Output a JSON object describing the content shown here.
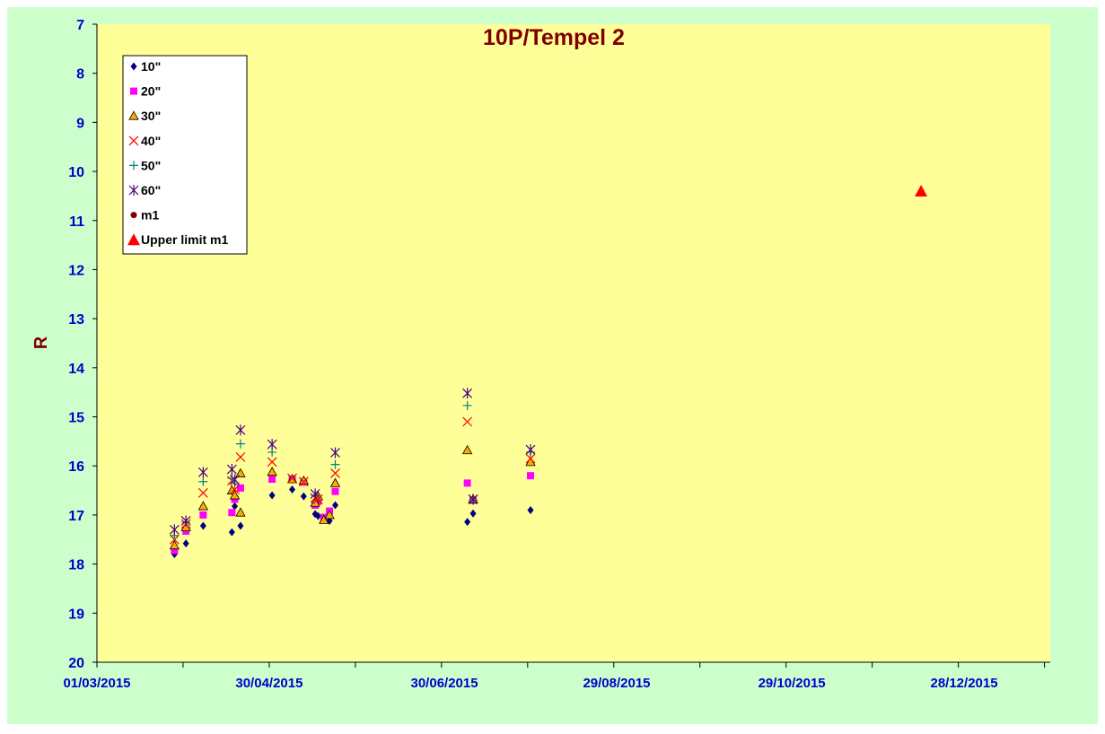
{
  "chart_data": {
    "type": "scatter",
    "title": "10P/Tempel 2",
    "xlabel": "",
    "ylabel": "R",
    "x_ticks": [
      "01/03/2015",
      "30/04/2015",
      "30/06/2015",
      "29/08/2015",
      "29/10/2015",
      "28/12/2015"
    ],
    "x_range": [
      "2015-03-01",
      "2016-01-27"
    ],
    "y_ticks": [
      "7",
      "8",
      "9",
      "10",
      "11",
      "12",
      "13",
      "14",
      "15",
      "16",
      "17",
      "18",
      "19",
      "20"
    ],
    "ylim": [
      7,
      20
    ],
    "y_inverted": true,
    "grid": false,
    "legend": "top-left",
    "colors": {
      "outer_bg": "#ccffcc",
      "plot_bg": "#ffff99",
      "title": "#800000",
      "axis_labels": "#0000cc"
    },
    "series": [
      {
        "name": "10\"",
        "marker": "diamond",
        "color": "#000080",
        "points": [
          [
            "2015-03-28",
            17.8
          ],
          [
            "2015-04-01",
            17.58
          ],
          [
            "2015-04-07",
            17.22
          ],
          [
            "2015-04-17",
            17.35
          ],
          [
            "2015-04-18",
            16.82
          ],
          [
            "2015-04-20",
            17.22
          ],
          [
            "2015-05-01",
            16.6
          ],
          [
            "2015-05-08",
            16.48
          ],
          [
            "2015-05-12",
            16.62
          ],
          [
            "2015-05-16",
            16.98
          ],
          [
            "2015-05-17",
            17.02
          ],
          [
            "2015-05-19",
            17.05
          ],
          [
            "2015-05-21",
            17.12
          ],
          [
            "2015-05-23",
            16.8
          ],
          [
            "2015-07-08",
            17.14
          ],
          [
            "2015-07-10",
            16.97
          ],
          [
            "2015-07-30",
            16.9
          ]
        ]
      },
      {
        "name": "20\"",
        "marker": "square",
        "color": "#ff00ff",
        "points": [
          [
            "2015-03-28",
            17.72
          ],
          [
            "2015-04-01",
            17.33
          ],
          [
            "2015-04-07",
            17.0
          ],
          [
            "2015-04-17",
            16.95
          ],
          [
            "2015-04-18",
            16.68
          ],
          [
            "2015-04-20",
            16.45
          ],
          [
            "2015-05-01",
            16.27
          ],
          [
            "2015-05-08",
            16.27
          ],
          [
            "2015-05-12",
            16.33
          ],
          [
            "2015-05-16",
            16.8
          ],
          [
            "2015-05-17",
            16.72
          ],
          [
            "2015-05-19",
            17.05
          ],
          [
            "2015-05-21",
            16.92
          ],
          [
            "2015-05-23",
            16.52
          ],
          [
            "2015-07-08",
            16.35
          ],
          [
            "2015-07-10",
            16.7
          ],
          [
            "2015-07-30",
            16.2
          ]
        ]
      },
      {
        "name": "30\"",
        "marker": "triangle",
        "color": "#ffaa00",
        "points": [
          [
            "2015-03-28",
            17.62
          ],
          [
            "2015-04-01",
            17.25
          ],
          [
            "2015-04-07",
            16.82
          ],
          [
            "2015-04-17",
            16.5
          ],
          [
            "2015-04-18",
            16.6
          ],
          [
            "2015-04-20",
            16.15
          ],
          [
            "2015-04-20",
            16.95
          ],
          [
            "2015-05-01",
            16.12
          ],
          [
            "2015-05-08",
            16.27
          ],
          [
            "2015-05-12",
            16.3
          ],
          [
            "2015-05-16",
            16.75
          ],
          [
            "2015-05-17",
            16.62
          ],
          [
            "2015-05-19",
            17.1
          ],
          [
            "2015-05-21",
            17.0
          ],
          [
            "2015-05-23",
            16.35
          ],
          [
            "2015-07-08",
            15.68
          ],
          [
            "2015-07-10",
            16.68
          ],
          [
            "2015-07-30",
            15.92
          ]
        ]
      },
      {
        "name": "40\"",
        "marker": "x",
        "color": "#ff0000",
        "points": [
          [
            "2015-03-28",
            17.5
          ],
          [
            "2015-04-01",
            17.18
          ],
          [
            "2015-04-07",
            16.55
          ],
          [
            "2015-04-17",
            16.3
          ],
          [
            "2015-04-18",
            16.48
          ],
          [
            "2015-04-20",
            15.82
          ],
          [
            "2015-05-01",
            15.92
          ],
          [
            "2015-05-08",
            16.25
          ],
          [
            "2015-05-12",
            16.32
          ],
          [
            "2015-05-16",
            16.65
          ],
          [
            "2015-05-17",
            16.68
          ],
          [
            "2015-05-23",
            16.15
          ],
          [
            "2015-07-08",
            15.1
          ],
          [
            "2015-07-10",
            16.68
          ],
          [
            "2015-07-30",
            15.85
          ]
        ]
      },
      {
        "name": "50\"",
        "marker": "plus",
        "color": "#008080",
        "points": [
          [
            "2015-03-28",
            17.42
          ],
          [
            "2015-04-01",
            17.15
          ],
          [
            "2015-04-07",
            16.32
          ],
          [
            "2015-04-17",
            16.25
          ],
          [
            "2015-04-18",
            16.36
          ],
          [
            "2015-04-20",
            15.55
          ],
          [
            "2015-05-01",
            15.72
          ],
          [
            "2015-05-16",
            16.6
          ],
          [
            "2015-05-23",
            15.97
          ],
          [
            "2015-07-08",
            14.77
          ],
          [
            "2015-07-10",
            16.7
          ],
          [
            "2015-07-30",
            15.72
          ]
        ]
      },
      {
        "name": "60\"",
        "marker": "star",
        "color": "#4b0082",
        "points": [
          [
            "2015-03-28",
            17.3
          ],
          [
            "2015-04-01",
            17.12
          ],
          [
            "2015-04-07",
            16.13
          ],
          [
            "2015-04-17",
            16.07
          ],
          [
            "2015-04-18",
            16.28
          ],
          [
            "2015-04-20",
            15.27
          ],
          [
            "2015-05-01",
            15.56
          ],
          [
            "2015-05-16",
            16.57
          ],
          [
            "2015-05-23",
            15.73
          ],
          [
            "2015-07-08",
            14.52
          ],
          [
            "2015-07-10",
            16.68
          ],
          [
            "2015-07-30",
            15.67
          ]
        ]
      },
      {
        "name": "m1",
        "marker": "circle",
        "color": "#800000",
        "points": []
      },
      {
        "name": "Upper limit m1",
        "marker": "triangle-filled",
        "color": "#ff0000",
        "points": [
          [
            "2015-12-13",
            10.4
          ]
        ]
      }
    ]
  }
}
